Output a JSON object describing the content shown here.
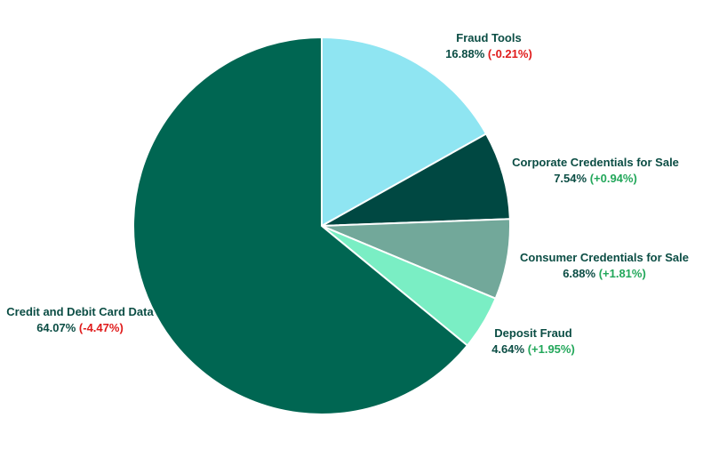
{
  "chart_data": {
    "type": "pie",
    "start_angle_deg": 0,
    "direction": "clockwise",
    "colors": {
      "slice_border": "#ffffff",
      "label_text": "#0b4d44",
      "change_negative": "#e01b1b",
      "change_positive": "#22a75a"
    },
    "slices": [
      {
        "label": "Credit and Debit Card Data",
        "value": 64.07,
        "percent_text": "64.07%",
        "change": -4.47,
        "change_text": "(-4.47%)",
        "color": "#006652"
      },
      {
        "label": "Fraud Tools",
        "value": 16.88,
        "percent_text": "16.88%",
        "change": -0.21,
        "change_text": "(-0.21%)",
        "color": "#8fe5f2"
      },
      {
        "label": "Corporate Credentials for Sale",
        "value": 7.54,
        "percent_text": "7.54%",
        "change": 0.94,
        "change_text": "(+0.94%)",
        "color": "#004842"
      },
      {
        "label": "Consumer Credentials for Sale",
        "value": 6.88,
        "percent_text": "6.88%",
        "change": 1.81,
        "change_text": "(+1.81%)",
        "color": "#72a89a"
      },
      {
        "label": "Deposit Fraud",
        "value": 4.64,
        "percent_text": "4.64%",
        "change": 1.95,
        "change_text": "(+1.95%)",
        "color": "#7aeec4"
      }
    ],
    "draw_order": [
      1,
      2,
      3,
      4,
      0
    ]
  }
}
